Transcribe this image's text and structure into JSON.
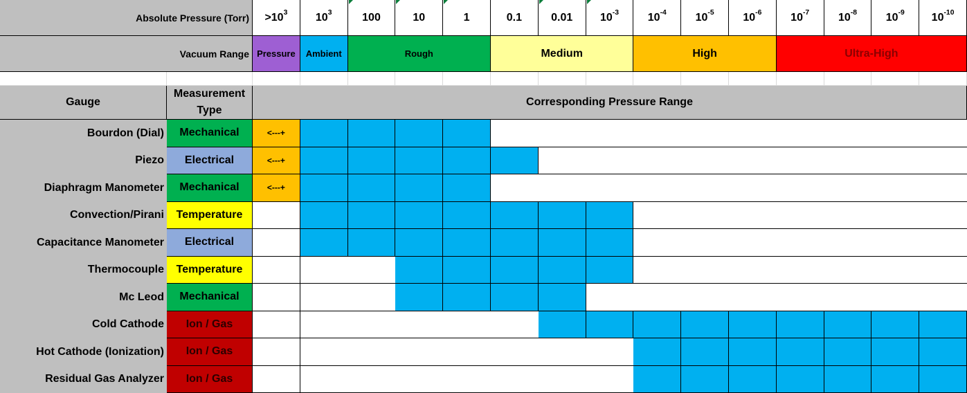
{
  "header": {
    "pressure_label": "Absolute Pressure (Torr)",
    "pressures": [
      {
        "base": ">10",
        "exp": "3"
      },
      {
        "base": "10",
        "exp": "3"
      },
      {
        "base": "100",
        "exp": ""
      },
      {
        "base": "10",
        "exp": ""
      },
      {
        "base": "1",
        "exp": ""
      },
      {
        "base": "0.1",
        "exp": ""
      },
      {
        "base": "0.01",
        "exp": ""
      },
      {
        "base": "10",
        "exp": "-3"
      },
      {
        "base": "10",
        "exp": "-4"
      },
      {
        "base": "10",
        "exp": "-5"
      },
      {
        "base": "10",
        "exp": "-6"
      },
      {
        "base": "10",
        "exp": "-7"
      },
      {
        "base": "10",
        "exp": "-8"
      },
      {
        "base": "10",
        "exp": "-9"
      },
      {
        "base": "10",
        "exp": "-10"
      }
    ],
    "vacuum_label": "Vacuum Range",
    "vacuum_ranges": [
      {
        "label": "Pressure",
        "start": 0,
        "span": 1,
        "color": "#9e5fd3"
      },
      {
        "label": "Ambient",
        "start": 1,
        "span": 1,
        "color": "#00b0f0"
      },
      {
        "label": "Rough",
        "start": 2,
        "span": 3,
        "color": "#00b050"
      },
      {
        "label": "Medium",
        "start": 5,
        "span": 3,
        "color": "#ffff99"
      },
      {
        "label": "High",
        "start": 8,
        "span": 3,
        "color": "#ffc000"
      },
      {
        "label": "Ultra-High",
        "start": 11,
        "span": 4,
        "color": "#ff0000"
      }
    ]
  },
  "table": {
    "col_gauge": "Gauge",
    "col_type": "Measurement Type",
    "col_range": "Corresponding Pressure Range",
    "above_marker": "<---+",
    "colors": {
      "range_fill": "#00b0f0",
      "above_fill": "#ffc000",
      "Mechanical": "#00b050",
      "Electrical": "#8eaadb",
      "Temperature": "#ffff00",
      "Ion / Gas": "#c00000"
    },
    "rows": [
      {
        "gauge": "Bourdon (Dial)",
        "type": "Mechanical",
        "above": true,
        "from": 1,
        "to": 4
      },
      {
        "gauge": "Piezo",
        "type": "Electrical",
        "above": true,
        "from": 1,
        "to": 5
      },
      {
        "gauge": "Diaphragm Manometer",
        "type": "Mechanical",
        "above": true,
        "from": 1,
        "to": 4
      },
      {
        "gauge": "Convection/Pirani",
        "type": "Temperature",
        "above": false,
        "from": 1,
        "to": 7
      },
      {
        "gauge": "Capacitance Manometer",
        "type": "Electrical",
        "above": false,
        "from": 1,
        "to": 7
      },
      {
        "gauge": "Thermocouple",
        "type": "Temperature",
        "above": false,
        "from": 3,
        "to": 7
      },
      {
        "gauge": "Mc Leod",
        "type": "Mechanical",
        "above": false,
        "from": 3,
        "to": 6
      },
      {
        "gauge": "Cold Cathode",
        "type": "Ion / Gas",
        "above": false,
        "from": 6,
        "to": 14
      },
      {
        "gauge": "Hot Cathode (Ionization)",
        "type": "Ion / Gas",
        "above": false,
        "from": 8,
        "to": 14
      },
      {
        "gauge": "Residual Gas Analyzer",
        "type": "Ion / Gas",
        "above": false,
        "from": 8,
        "to": 14
      }
    ]
  }
}
